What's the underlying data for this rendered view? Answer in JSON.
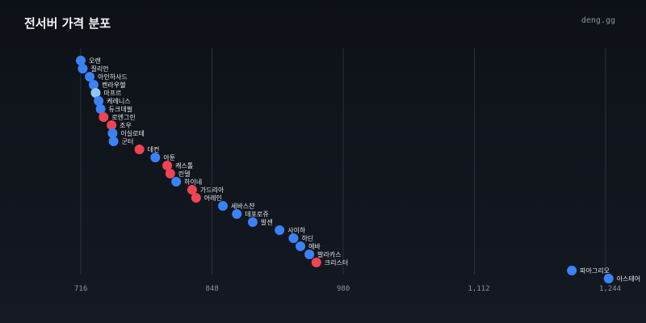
{
  "header": {
    "title": "전서버 가격 분포",
    "brand": "deng.gg"
  },
  "colors": {
    "blue": "#3b82f6",
    "light_blue": "#93c5fd",
    "red": "#ef4452",
    "grid": "#2a313c"
  },
  "chart_data": {
    "type": "scatter",
    "title": "전서버 가격 분포",
    "xlabel": "",
    "ylabel": "",
    "xlim": [
      716,
      1244
    ],
    "xticks": [
      716,
      848,
      980,
      1112,
      1244
    ],
    "xtick_labels": [
      "716",
      "848",
      "980",
      "1,112",
      "1,244"
    ],
    "grid": "vertical",
    "points": [
      {
        "label": "오렌",
        "x": 716,
        "color": "blue"
      },
      {
        "label": "질리언",
        "x": 718,
        "color": "blue"
      },
      {
        "label": "아인하사드",
        "x": 725,
        "color": "blue"
      },
      {
        "label": "켄라우헬",
        "x": 729,
        "color": "blue"
      },
      {
        "label": "마프르",
        "x": 731,
        "color": "light_blue"
      },
      {
        "label": "케레니스",
        "x": 734,
        "color": "blue"
      },
      {
        "label": "듀크데필",
        "x": 736,
        "color": "blue"
      },
      {
        "label": "로엔그린",
        "x": 739,
        "color": "red"
      },
      {
        "label": "조우",
        "x": 747,
        "color": "red"
      },
      {
        "label": "이실로테",
        "x": 748,
        "color": "blue"
      },
      {
        "label": "군터",
        "x": 749,
        "color": "blue"
      },
      {
        "label": "데컨",
        "x": 775,
        "color": "red"
      },
      {
        "label": "아툰",
        "x": 791,
        "color": "blue"
      },
      {
        "label": "캐스톨",
        "x": 803,
        "color": "red"
      },
      {
        "label": "린델",
        "x": 806,
        "color": "red"
      },
      {
        "label": "하이네",
        "x": 812,
        "color": "blue"
      },
      {
        "label": "가드리아",
        "x": 828,
        "color": "red"
      },
      {
        "label": "어레인",
        "x": 832,
        "color": "red"
      },
      {
        "label": "세바스챤",
        "x": 859,
        "color": "blue"
      },
      {
        "label": "데포로쥬",
        "x": 873,
        "color": "blue"
      },
      {
        "label": "발센",
        "x": 889,
        "color": "blue"
      },
      {
        "label": "사이하",
        "x": 916,
        "color": "blue"
      },
      {
        "label": "하딘",
        "x": 930,
        "color": "blue"
      },
      {
        "label": "에바",
        "x": 937,
        "color": "blue"
      },
      {
        "label": "발라카스",
        "x": 946,
        "color": "blue"
      },
      {
        "label": "크리스터",
        "x": 953,
        "color": "red"
      },
      {
        "label": "파아그리오",
        "x": 1210,
        "color": "blue"
      },
      {
        "label": "아스테어",
        "x": 1247,
        "color": "blue"
      }
    ]
  }
}
